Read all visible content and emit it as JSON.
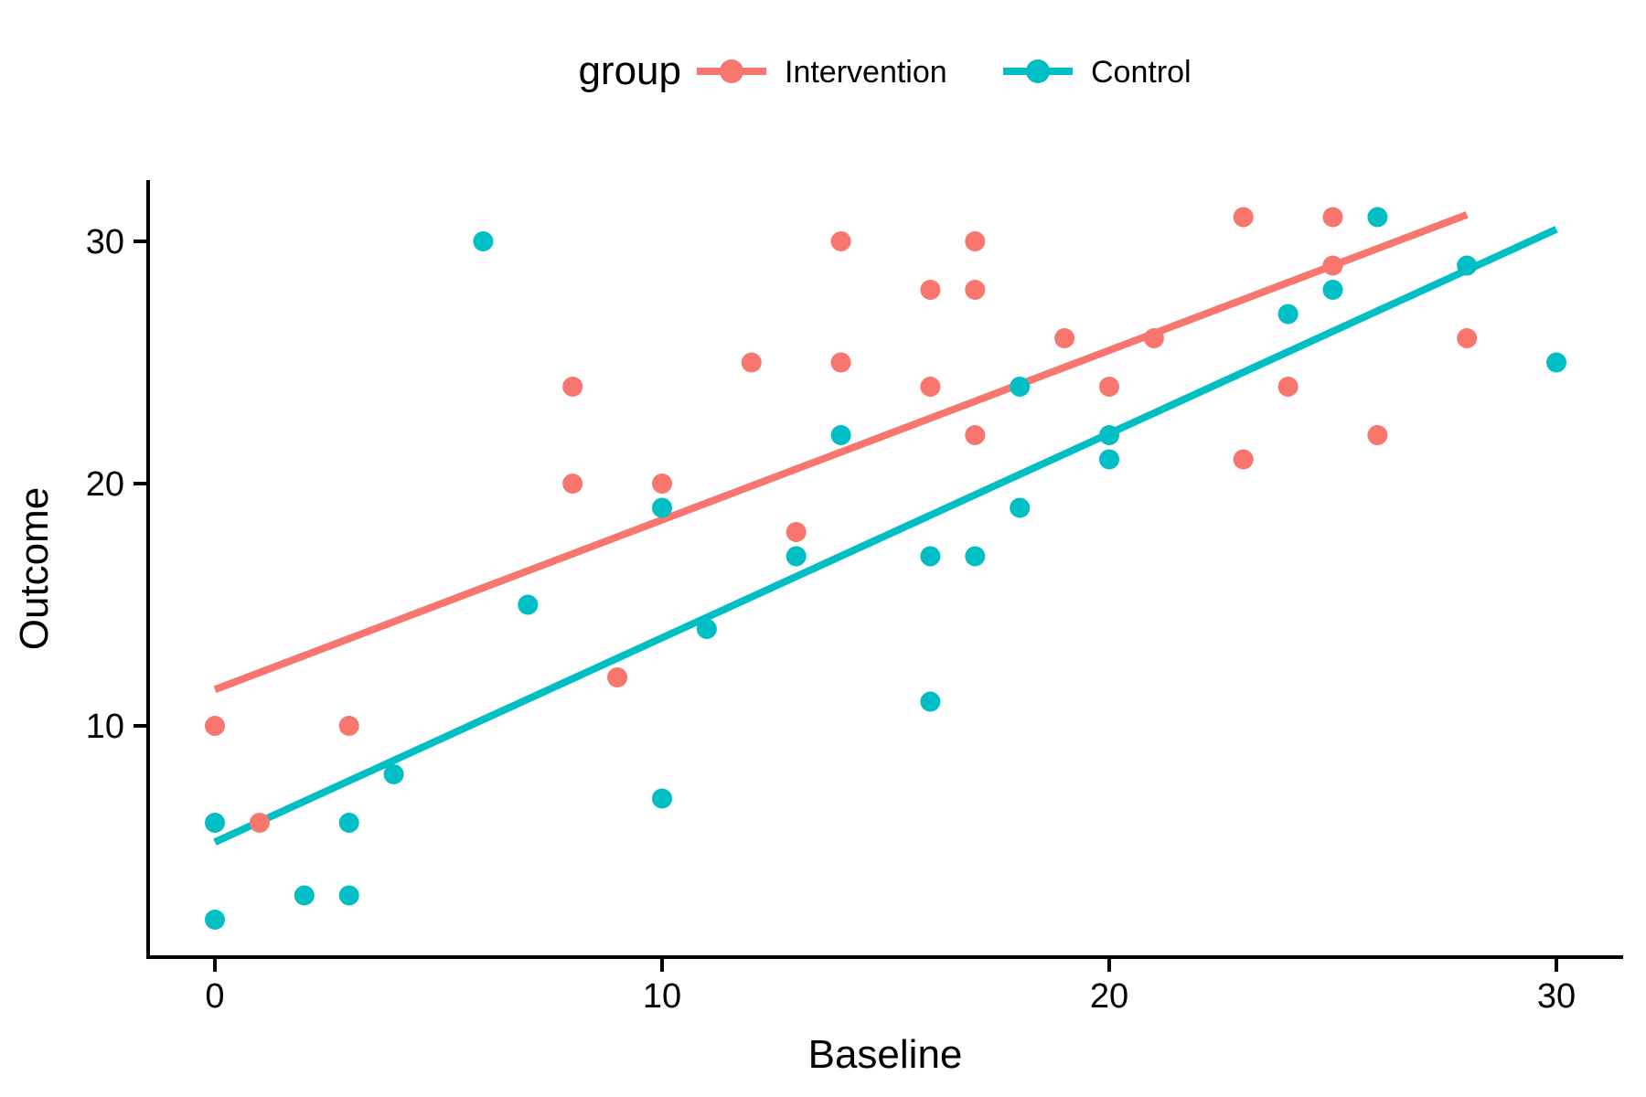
{
  "page": {
    "background": "#ffffff",
    "text_color": "#000000",
    "axis_color": "#000000"
  },
  "legend": {
    "title": "group",
    "items": [
      {
        "label": "Intervention",
        "color": "#F8766D"
      },
      {
        "label": "Control",
        "color": "#00BFC4"
      }
    ]
  },
  "axes": {
    "x": {
      "label": "Baseline",
      "tick_labels": [
        "0",
        "10",
        "20",
        "30"
      ],
      "tick_values": [
        0,
        10,
        20,
        30
      ]
    },
    "y": {
      "label": "Outcome",
      "tick_labels": [
        "10",
        "20",
        "30"
      ],
      "tick_values": [
        10,
        20,
        30
      ]
    }
  },
  "chart_data": {
    "type": "scatter",
    "title": "",
    "xlabel": "Baseline",
    "ylabel": "Outcome",
    "xlim": [
      -1.5,
      31.5
    ],
    "ylim": [
      0.4,
      32.5
    ],
    "grid": false,
    "legend_position": "top-center",
    "legend_title": "group",
    "series": [
      {
        "name": "Intervention",
        "color": "#F8766D",
        "marker_radius": 11,
        "points": [
          [
            0,
            10
          ],
          [
            1,
            6
          ],
          [
            3,
            10
          ],
          [
            8,
            20
          ],
          [
            8,
            24
          ],
          [
            9,
            12
          ],
          [
            10,
            20
          ],
          [
            12,
            25
          ],
          [
            13,
            18
          ],
          [
            14,
            25
          ],
          [
            14,
            30
          ],
          [
            16,
            24
          ],
          [
            16,
            28
          ],
          [
            17,
            22
          ],
          [
            17,
            28
          ],
          [
            17,
            30
          ],
          [
            19,
            26
          ],
          [
            20,
            24
          ],
          [
            21,
            26
          ],
          [
            23,
            21
          ],
          [
            23,
            31
          ],
          [
            24,
            24
          ],
          [
            25,
            29
          ],
          [
            25,
            31
          ],
          [
            26,
            22
          ],
          [
            28,
            26
          ]
        ],
        "trend_line": {
          "x1": 0,
          "y1": 11.5,
          "x2": 28,
          "y2": 31.1
        }
      },
      {
        "name": "Control",
        "color": "#00BFC4",
        "marker_radius": 11,
        "points": [
          [
            0,
            2
          ],
          [
            0,
            6
          ],
          [
            2,
            3
          ],
          [
            3,
            3
          ],
          [
            3,
            6
          ],
          [
            4,
            8
          ],
          [
            6,
            30
          ],
          [
            7,
            15
          ],
          [
            10,
            7
          ],
          [
            10,
            19
          ],
          [
            11,
            14
          ],
          [
            13,
            17
          ],
          [
            14,
            22
          ],
          [
            16,
            11
          ],
          [
            16,
            17
          ],
          [
            17,
            17
          ],
          [
            18,
            19
          ],
          [
            18,
            24
          ],
          [
            20,
            21
          ],
          [
            20,
            22
          ],
          [
            24,
            27
          ],
          [
            25,
            28
          ],
          [
            26,
            31
          ],
          [
            28,
            29
          ],
          [
            30,
            25
          ]
        ],
        "trend_line": {
          "x1": 0,
          "y1": 5.2,
          "x2": 30,
          "y2": 30.5
        }
      }
    ]
  }
}
